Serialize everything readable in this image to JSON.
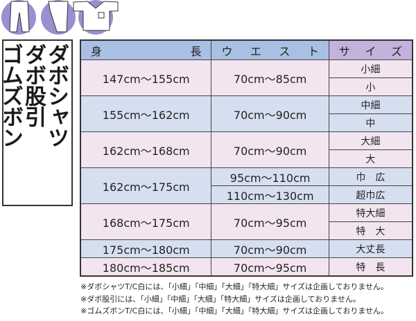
{
  "icons": [
    "hakama-pants-icon",
    "momohiki-pants-icon",
    "dabo-shirt-icon"
  ],
  "colors": {
    "icon_circle": "#9a8fd0",
    "header_blue": "#a9bfe3",
    "header_purple": "#c3b2dc",
    "row_pink": "#f2e5f0",
    "row_blue": "#d6dff0"
  },
  "products": [
    "ダボシャツ",
    "ダボ股引",
    "ゴムズボン"
  ],
  "headers": {
    "height": [
      "身",
      "長"
    ],
    "waist": [
      "ウ",
      "エ",
      "ス",
      "ト"
    ],
    "size": [
      "サ",
      "イ",
      "ズ"
    ]
  },
  "rows": [
    {
      "height": "147cm～155cm",
      "waist": [
        "70cm～85cm"
      ],
      "sizes": [
        "小細",
        "小"
      ]
    },
    {
      "height": "155cm～162cm",
      "waist": [
        "70cm～90cm"
      ],
      "sizes": [
        "中細",
        "中"
      ]
    },
    {
      "height": "162cm～168cm",
      "waist": [
        "70cm～90cm"
      ],
      "sizes": [
        "大細",
        "大"
      ]
    },
    {
      "height": "162cm～175cm",
      "waist": [
        "95cm～110cm",
        "110cm～130cm"
      ],
      "sizes": [
        "巾　広",
        "超巾広"
      ]
    },
    {
      "height": "168cm～175cm",
      "waist": [
        "70cm～95cm"
      ],
      "sizes": [
        "特大細",
        "特　大"
      ]
    },
    {
      "height": "175cm～180cm",
      "waist": [
        "70cm～90cm"
      ],
      "sizes": [
        "大丈長"
      ]
    },
    {
      "height": "180cm～185cm",
      "waist": [
        "70cm～95cm"
      ],
      "sizes": [
        "特　長"
      ]
    }
  ],
  "notes": [
    "※ダボシャツT/C白には、「小細」「中細」「大細」「特大細」サイズは企画しておりません。",
    "※ダボ股引には、「小細」「中細」「大細」「特大細」サイズは企画しておりません。",
    "※ゴムズボンT/C白には、「小細」「中細」「大細」「特大細」サイズは企画しておりません。"
  ]
}
